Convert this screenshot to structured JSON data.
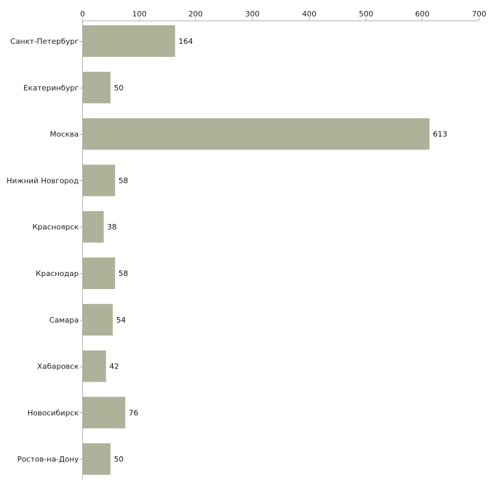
{
  "chart_data": {
    "type": "bar",
    "orientation": "horizontal",
    "title": "",
    "xlabel": "",
    "ylabel": "",
    "categories": [
      "Санкт-Петербург",
      "Екатеринбург",
      "Москва",
      "Нижний Новгород",
      "Красноярск",
      "Краснодар",
      "Самара",
      "Хабаровск",
      "Новосибирск",
      "Ростов-на-Дону"
    ],
    "values": [
      164,
      50,
      613,
      58,
      38,
      58,
      54,
      42,
      76,
      50
    ],
    "xlim": [
      0,
      700
    ],
    "xticks": [
      0,
      100,
      200,
      300,
      400,
      500,
      600,
      700
    ],
    "axis_position": "top",
    "grid": false,
    "legend": "none",
    "colors": {
      "bar": "#adb298",
      "axis": "#b0b0b0"
    }
  }
}
